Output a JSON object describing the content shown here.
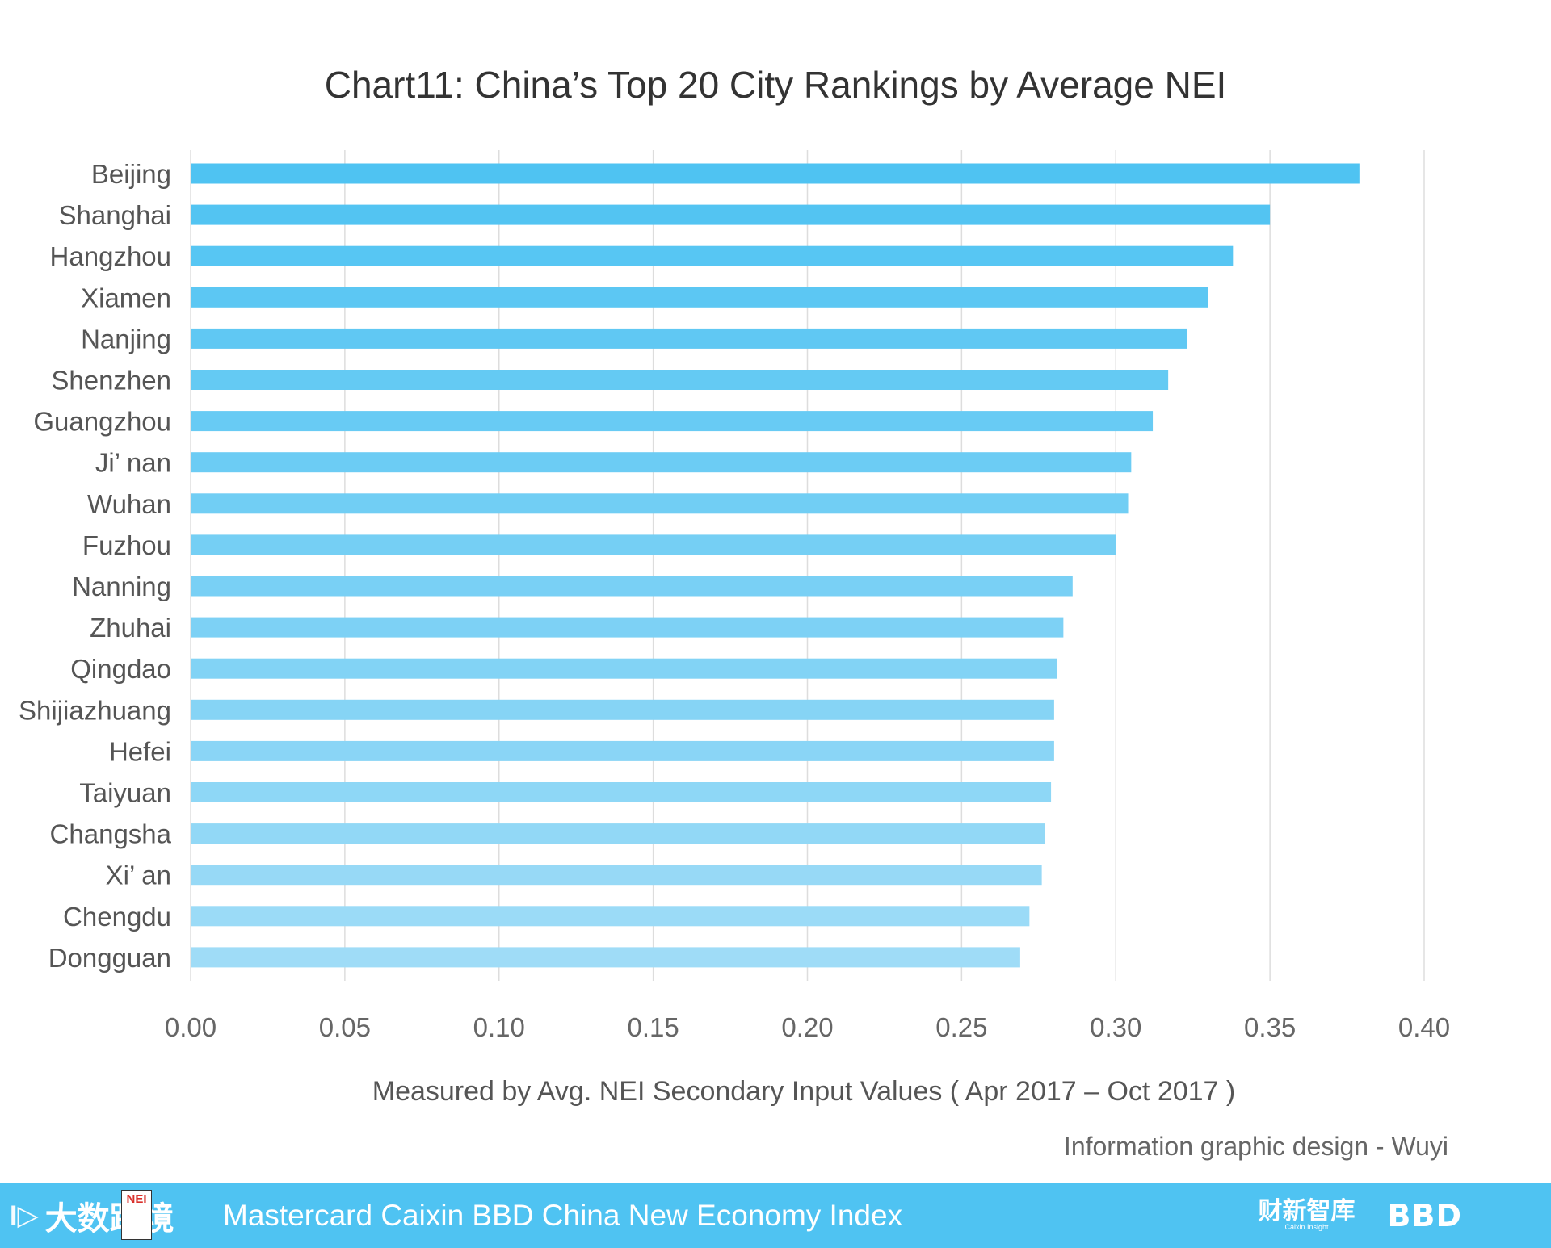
{
  "chart_data": {
    "type": "bar",
    "orientation": "horizontal",
    "title": "Chart11: China’s Top 20 City Rankings by Average NEI",
    "xlabel": "Measured by Avg. NEI Secondary Input Values (  Apr 2017 – Oct 2017 )",
    "ylabel": "",
    "xlim": [
      0,
      0.4
    ],
    "xticks": [
      "0.00",
      "0.05",
      "0.10",
      "0.15",
      "0.20",
      "0.25",
      "0.30",
      "0.35",
      "0.40"
    ],
    "grid": "vertical",
    "categories": [
      "Beijing",
      "Shanghai",
      "Hangzhou",
      "Xiamen",
      "Nanjing",
      "Shenzhen",
      "Guangzhou",
      "Ji’ nan",
      "Wuhan",
      "Fuzhou",
      "Nanning",
      "Zhuhai",
      "Qingdao",
      "Shijiazhuang",
      "Hefei",
      "Taiyuan",
      "Changsha",
      "Xi’ an",
      "Chengdu",
      "Dongguan"
    ],
    "values": [
      0.379,
      0.35,
      0.338,
      0.33,
      0.323,
      0.317,
      0.312,
      0.305,
      0.304,
      0.3,
      0.286,
      0.283,
      0.281,
      0.28,
      0.28,
      0.279,
      0.277,
      0.276,
      0.272,
      0.269
    ],
    "colors": {
      "bar_top": "#4fc3f2",
      "bar_bottom": "#9fdcf7",
      "grid": "#dddddd",
      "text": "#555555"
    }
  },
  "credit": "Information graphic design - Wuyi",
  "footer": {
    "logo_mark": "I▷",
    "logo_cn": "大数跨境",
    "badge": "NEI",
    "text": "Mastercard Caixin BBD China New Economy Index",
    "caixin_cn": "财新智库",
    "caixin_en": "Caixin Insight",
    "bbd": "BBD"
  }
}
